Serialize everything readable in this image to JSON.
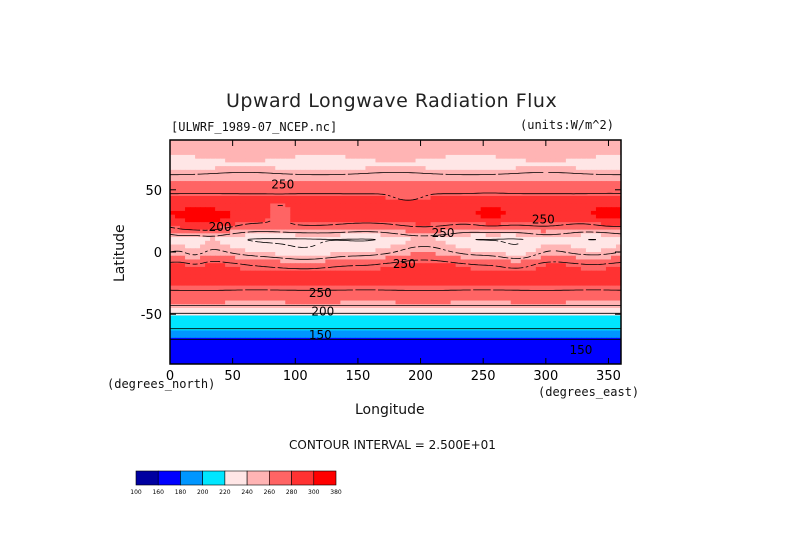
{
  "chart_data": {
    "type": "heatmap",
    "title": "Upward Longwave Radiation Flux",
    "file_label": "[ULWRF_1989-07_NCEP.nc]",
    "units_label": "(units:W/m^2)",
    "xlabel": "Longitude",
    "ylabel": "Latitude",
    "x_unit_label": "(degrees_east)",
    "y_unit_label": "(degrees_north)",
    "xlim": [
      0,
      360
    ],
    "ylim": [
      -90,
      90
    ],
    "x_ticks": [
      0,
      50,
      100,
      150,
      200,
      250,
      300,
      350
    ],
    "y_ticks": [
      -50,
      0,
      50
    ],
    "x_tick_labels": [
      "0",
      "50",
      "100",
      "150",
      "200",
      "250",
      "300",
      "350"
    ],
    "y_tick_labels": [
      "-50",
      "0",
      "50"
    ],
    "contour_interval_text": "CONTOUR INTERVAL = 2.500E+01",
    "contour_levels": [
      150,
      175,
      200,
      225,
      250,
      275
    ],
    "contour_labels": [
      {
        "text": "250",
        "lon": 120,
        "lat": -36
      },
      {
        "text": "200",
        "lon": 122,
        "lat": -51
      },
      {
        "text": "150",
        "lon": 120,
        "lat": -70
      },
      {
        "text": "250",
        "lon": 218,
        "lat": 12
      },
      {
        "text": "250",
        "lon": 187,
        "lat": -13
      },
      {
        "text": "250",
        "lon": 298,
        "lat": 23
      },
      {
        "text": "150",
        "lon": 328,
        "lat": -82
      },
      {
        "text": "200",
        "lon": 40,
        "lat": 17
      },
      {
        "text": "250",
        "lon": 90,
        "lat": 51
      }
    ],
    "colorbar": {
      "bounds": [
        100,
        160,
        180,
        200,
        220,
        240,
        260,
        280,
        300,
        380
      ],
      "bound_labels": [
        "100",
        "160",
        "180",
        "200",
        "220",
        "240",
        "260",
        "280",
        "300",
        "380"
      ],
      "colors": [
        "#0000a0",
        "#0000ff",
        "#0096ff",
        "#00e6ff",
        "#ffe6e6",
        "#ffb4b4",
        "#ff6464",
        "#ff3232",
        "#ff0000"
      ]
    },
    "latitude_profile": [
      {
        "lat": 90,
        "value": 243
      },
      {
        "lat": 80,
        "value": 247
      },
      {
        "lat": 70,
        "value": 238
      },
      {
        "lat": 60,
        "value": 258
      },
      {
        "lat": 50,
        "value": 268
      },
      {
        "lat": 40,
        "value": 290
      },
      {
        "lat": 30,
        "value": 296
      },
      {
        "lat": 20,
        "value": 270
      },
      {
        "lat": 10,
        "value": 232
      },
      {
        "lat": 0,
        "value": 250
      },
      {
        "lat": -10,
        "value": 280
      },
      {
        "lat": -20,
        "value": 288
      },
      {
        "lat": -30,
        "value": 276
      },
      {
        "lat": -40,
        "value": 262
      },
      {
        "lat": -50,
        "value": 222
      },
      {
        "lat": -60,
        "value": 205
      },
      {
        "lat": -70,
        "value": 175
      },
      {
        "lat": -80,
        "value": 165
      },
      {
        "lat": -90,
        "value": 160
      }
    ]
  }
}
